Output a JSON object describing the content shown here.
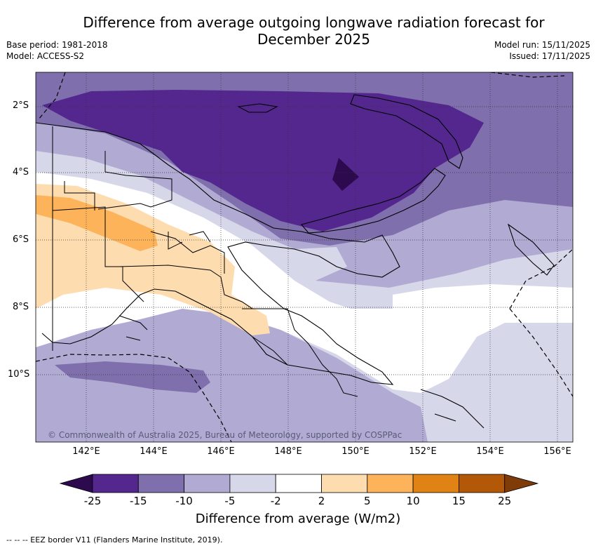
{
  "title_line1": "Difference from average outgoing longwave radiation forecast for",
  "title_line2": "December 2025",
  "base_period": "Base period: 1981-2018",
  "model": "Model: ACCESS-S2",
  "model_run": "Model run: 15/11/2025",
  "issued": "Issued: 17/11/2025",
  "credit": "© Commonwealth of Australia 2025, Bureau of Meteorology, supported by COSPPac",
  "lat_labels": [
    "2°S",
    "4°S",
    "6°S",
    "8°S",
    "10°S"
  ],
  "lon_labels": [
    "142°E",
    "144°E",
    "146°E",
    "148°E",
    "150°E",
    "152°E",
    "154°E",
    "156°E"
  ],
  "colorbar": {
    "title": "Difference from average (W/m2)",
    "ticks": [
      "-25",
      "-15",
      "-10",
      "-5",
      "-2",
      "2",
      "5",
      "10",
      "15",
      "25"
    ],
    "colors": [
      "#2d0a4e",
      "#54278f",
      "#7f70ad",
      "#b1aad3",
      "#d7d7ea",
      "#ffffff",
      "#fddcb0",
      "#fdb35a",
      "#e08214",
      "#b35806",
      "#7f3b08"
    ]
  },
  "legend_footer": "--  --  -- EEZ border V11 (Flanders Marine Institute, 2019)."
}
